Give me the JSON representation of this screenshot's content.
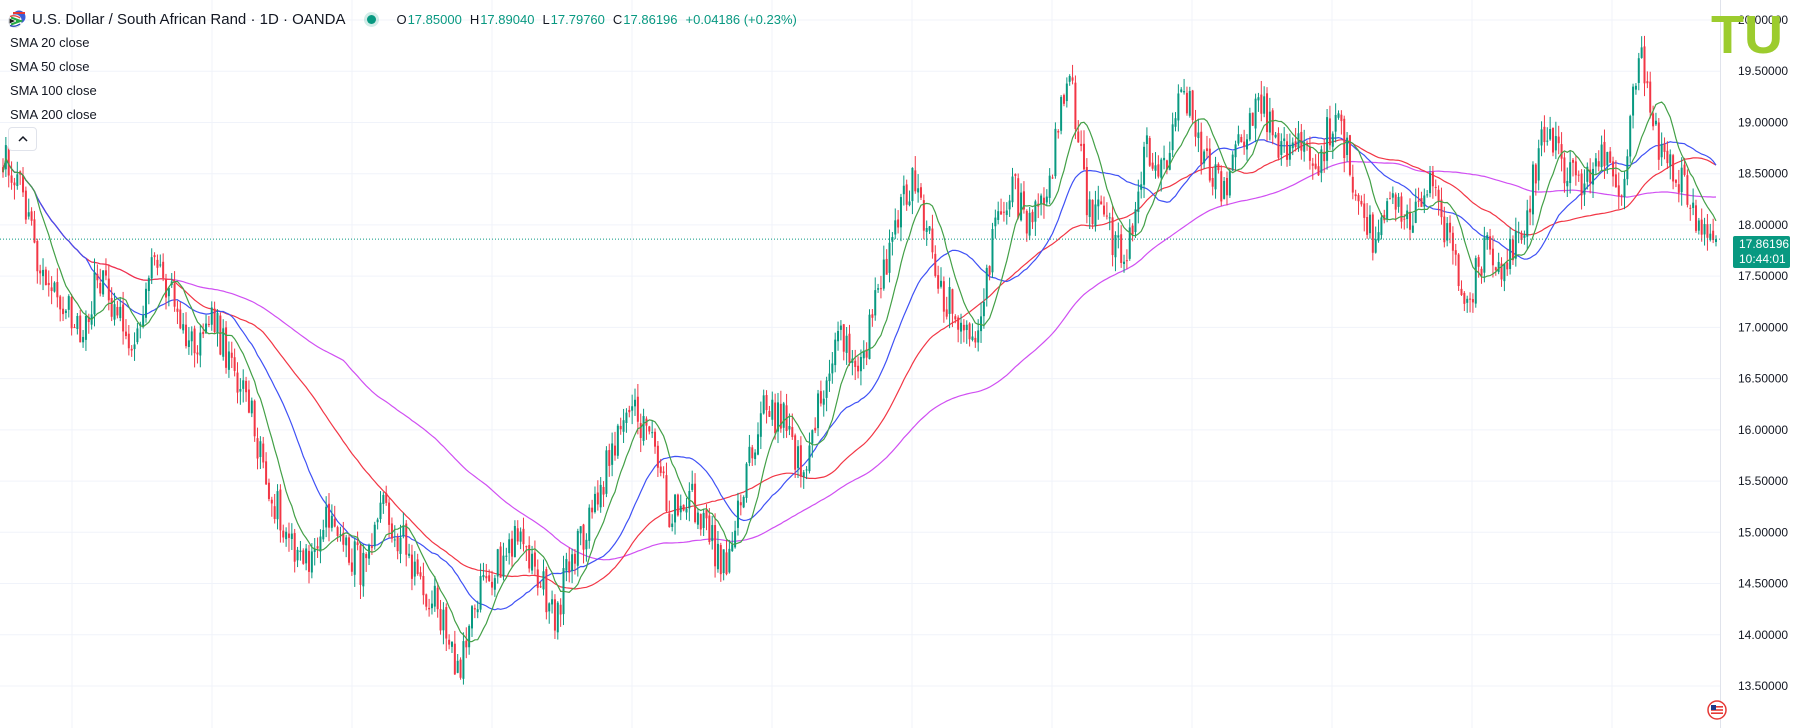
{
  "header": {
    "title": "U.S. Dollar / South African Rand · 1D · OANDA",
    "ohlc": [
      {
        "key": "O",
        "value": "17.85000"
      },
      {
        "key": "H",
        "value": "17.89040"
      },
      {
        "key": "L",
        "value": "17.79760"
      },
      {
        "key": "C",
        "value": "17.86196"
      }
    ],
    "change": "+0.04186 (+0.23%)"
  },
  "indicators": [
    "SMA 20 close",
    "SMA 50 close",
    "SMA 100 close",
    "SMA 200 close"
  ],
  "price_tag": {
    "price": "17.86196",
    "countdown": "10:44:01"
  },
  "logo": {
    "text": "TU"
  },
  "colors": {
    "up": "#089981",
    "down": "#f23645",
    "sma20": "#43a047",
    "sma50": "#3f51f5",
    "sma100": "#f23645",
    "sma200": "#d04ff2",
    "grid": "#f0f3fa",
    "price_line": "#089981",
    "logo": "#9ccc2e"
  },
  "chart_data": {
    "type": "candlestick",
    "symbol": "USD/ZAR",
    "timeframe": "1D",
    "ylim": [
      13.3,
      20.1
    ],
    "yticks": [
      "13.50000",
      "14.00000",
      "14.50000",
      "15.00000",
      "15.50000",
      "16.00000",
      "16.50000",
      "17.00000",
      "17.50000",
      "18.00000",
      "18.50000",
      "19.00000",
      "19.50000",
      "20.00000"
    ],
    "last_price": 17.86196,
    "close_path": [
      18.7,
      18.3,
      17.6,
      17.3,
      16.9,
      17.5,
      17.2,
      16.8,
      17.7,
      17.2,
      16.8,
      17.1,
      16.6,
      16.2,
      15.4,
      15.0,
      14.7,
      15.1,
      14.9,
      14.6,
      15.2,
      14.9,
      14.5,
      14.2,
      13.6,
      14.4,
      14.7,
      15.0,
      14.6,
      14.2,
      14.8,
      15.2,
      15.8,
      16.2,
      15.9,
      15.2,
      15.4,
      15.0,
      14.6,
      15.5,
      16.2,
      16.1,
      15.6,
      16.3,
      16.9,
      16.5,
      17.4,
      18.1,
      18.5,
      17.5,
      17.1,
      16.9,
      17.8,
      18.4,
      17.9,
      18.5,
      19.5,
      18.2,
      18.0,
      17.6,
      18.8,
      18.5,
      19.4,
      18.7,
      18.3,
      18.8,
      19.2,
      18.7,
      18.9,
      18.6,
      19.1,
      18.4,
      17.9,
      18.2,
      18.0,
      18.5,
      17.8,
      17.3,
      17.8,
      17.6,
      18.1,
      19.0,
      18.6,
      18.4,
      18.8,
      18.3,
      19.7,
      18.7,
      18.5,
      18.1,
      17.86
    ]
  }
}
